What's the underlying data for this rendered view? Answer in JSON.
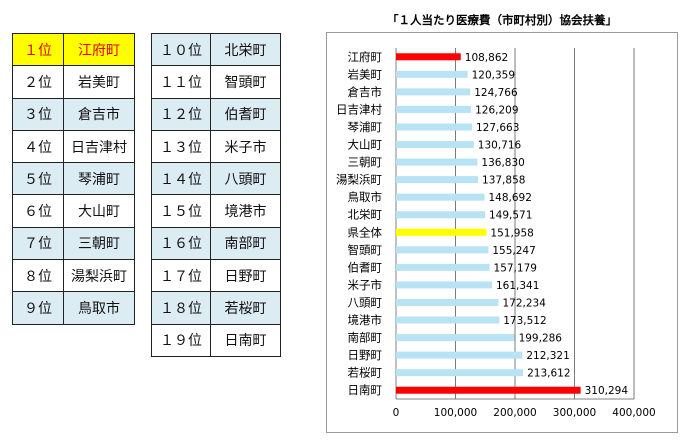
{
  "ranking_left": [
    {
      "rank": "１位",
      "name": "江府町"
    },
    {
      "rank": "２位",
      "name": "岩美町"
    },
    {
      "rank": "３位",
      "name": "倉吉市"
    },
    {
      "rank": "４位",
      "name": "日吉津村"
    },
    {
      "rank": "５位",
      "name": "琴浦町"
    },
    {
      "rank": "６位",
      "name": "大山町"
    },
    {
      "rank": "７位",
      "name": "三朝町"
    },
    {
      "rank": "８位",
      "name": "湯梨浜町"
    },
    {
      "rank": "９位",
      "name": "鳥取市"
    }
  ],
  "ranking_right": [
    {
      "rank": "１０位",
      "name": "北栄町"
    },
    {
      "rank": "１１位",
      "name": "智頭町"
    },
    {
      "rank": "１２位",
      "name": "伯耆町"
    },
    {
      "rank": "１３位",
      "name": "米子市"
    },
    {
      "rank": "１４位",
      "name": "八頭町"
    },
    {
      "rank": "１５位",
      "name": "境港市"
    },
    {
      "rank": "１６位",
      "name": "南部町"
    },
    {
      "rank": "１７位",
      "name": "日野町"
    },
    {
      "rank": "１８位",
      "name": "若桜町"
    },
    {
      "rank": "１９位",
      "name": "日南町"
    }
  ],
  "chart_data": {
    "type": "bar",
    "orientation": "horizontal",
    "title": "「１人当たり医療費（市町村別）協会扶養」",
    "categories": [
      "江府町",
      "岩美町",
      "倉吉市",
      "日吉津村",
      "琴浦町",
      "大山町",
      "三朝町",
      "湯梨浜町",
      "鳥取市",
      "北栄町",
      "県全体",
      "智頭町",
      "伯耆町",
      "米子市",
      "八頭町",
      "境港市",
      "南部町",
      "日野町",
      "若桜町",
      "日南町"
    ],
    "values": [
      108862,
      120359,
      124766,
      126209,
      127663,
      130716,
      136830,
      137858,
      148692,
      149571,
      151958,
      155247,
      157179,
      161341,
      172234,
      173512,
      199286,
      212321,
      213612,
      310294
    ],
    "value_labels": [
      "108,862",
      "120,359",
      "124,766",
      "126,209",
      "127,663",
      "130,716",
      "136,830",
      "137,858",
      "148,692",
      "149,571",
      "151,958",
      "155,247",
      "157,179",
      "161,341",
      "172,234",
      "173,512",
      "199,286",
      "212,321",
      "213,612",
      "310,294"
    ],
    "bar_colors": [
      "#ff0000",
      "#b7e3f4",
      "#b7e3f4",
      "#b7e3f4",
      "#b7e3f4",
      "#b7e3f4",
      "#b7e3f4",
      "#b7e3f4",
      "#b7e3f4",
      "#b7e3f4",
      "#ffff00",
      "#b7e3f4",
      "#b7e3f4",
      "#b7e3f4",
      "#b7e3f4",
      "#b7e3f4",
      "#b7e3f4",
      "#b7e3f4",
      "#b7e3f4",
      "#ff0000"
    ],
    "xlim": [
      0,
      400000
    ],
    "xticks": [
      0,
      100000,
      200000,
      300000,
      400000
    ],
    "xtick_labels": [
      "0",
      "100,000",
      "200,000",
      "300,000",
      "400,000"
    ],
    "xlabel": "",
    "ylabel": "",
    "grid": "vertical",
    "legend": "none"
  }
}
